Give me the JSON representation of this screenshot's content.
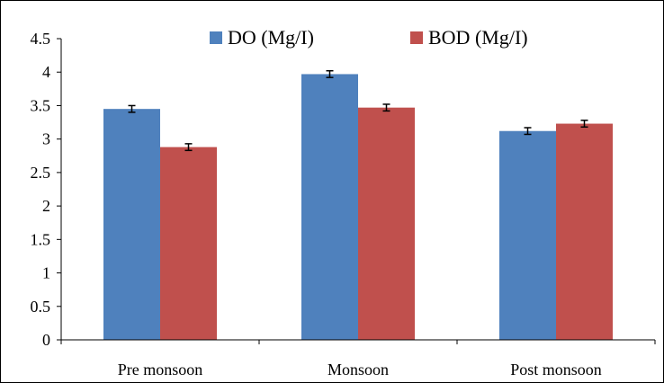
{
  "chart_data": {
    "type": "bar",
    "title": "",
    "xlabel": "",
    "ylabel": "",
    "categories": [
      "Pre monsoon",
      "Monsoon",
      "Post monsoon"
    ],
    "series": [
      {
        "name": "DO (Mg/I)",
        "color": "#4F81BD",
        "values": [
          3.45,
          3.97,
          3.12
        ],
        "errors": [
          0.05,
          0.05,
          0.05
        ]
      },
      {
        "name": "BOD (Mg/I)",
        "color": "#C0504D",
        "values": [
          2.88,
          3.47,
          3.23
        ],
        "errors": [
          0.05,
          0.05,
          0.05
        ]
      }
    ],
    "ylim": [
      0,
      4.5
    ],
    "yticks": [
      "0",
      "0.5",
      "1",
      "1.5",
      "2",
      "2.5",
      "3",
      "3.5",
      "4",
      "4.5"
    ],
    "grid": false,
    "legend_position": "top"
  }
}
